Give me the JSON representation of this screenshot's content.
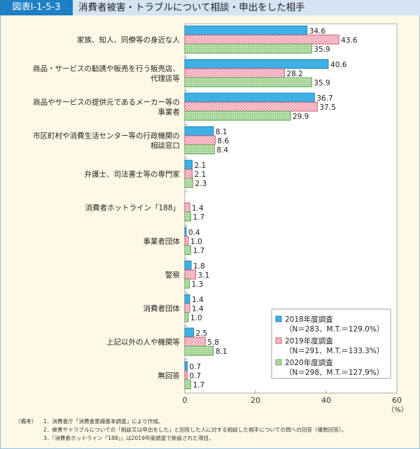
{
  "header": {
    "figure_number": "図表Ⅰ-1-5-3",
    "title": "消費者被害・トラブルについて相談・申出をした相手"
  },
  "chart_data": {
    "type": "bar",
    "orientation": "horizontal",
    "categories": [
      [
        "家族、知人、同僚等の身近な人"
      ],
      [
        "商品・サービスの勧誘や販売を行う販売店、",
        "代理店等"
      ],
      [
        "商品やサービスの提供元であるメーカー等の",
        "事業者"
      ],
      [
        "市区町村や消費生活センター等の行政機関の",
        "相談窓口"
      ],
      [
        "弁護士、司法書士等の専門家"
      ],
      [
        "消費者ホットライン「188」"
      ],
      [
        "事業者団体"
      ],
      [
        "警察"
      ],
      [
        "消費者団体"
      ],
      [
        "上記以外の人や機関等"
      ],
      [
        "無回答"
      ]
    ],
    "series": [
      {
        "name": "2018年度調査",
        "detail": "（N＝283、M.T.＝129.0%）",
        "color": "#3db1e6",
        "pattern": "solid",
        "values": [
          34.6,
          40.6,
          36.7,
          8.1,
          2.1,
          null,
          0.4,
          1.8,
          1.4,
          2.5,
          0.7
        ]
      },
      {
        "name": "2019年度調査",
        "detail": "（N＝291、M.T.＝133.3%）",
        "color": "#e96a85",
        "pattern": "hatch",
        "values": [
          43.6,
          28.2,
          37.5,
          8.6,
          2.1,
          1.4,
          1.0,
          3.1,
          1.4,
          5.8,
          0.7
        ]
      },
      {
        "name": "2020年度調査",
        "detail": "（N＝298、M.T.＝127.9%）",
        "color": "#6dbb5d",
        "pattern": "grid",
        "values": [
          35.9,
          35.9,
          29.9,
          8.4,
          2.3,
          1.7,
          1.7,
          1.3,
          1.0,
          8.1,
          1.7
        ]
      }
    ],
    "xlim": [
      0,
      60
    ],
    "xticks": [
      "0",
      "20",
      "40",
      "60"
    ],
    "xunit": "（%）",
    "legend": "bottom-right",
    "grid": false
  },
  "notes": {
    "heading": "（備考）",
    "items": [
      "1．消費者庁「消費者意識基本調査」により作成。",
      "2．被害やトラブルについての「相談又は申出をした」と回答した人に対する相談した相手についての問への回答（複数回答）。",
      "3．「消費者ホットライン「188」」は2019年度調査で新設された項目。"
    ]
  }
}
